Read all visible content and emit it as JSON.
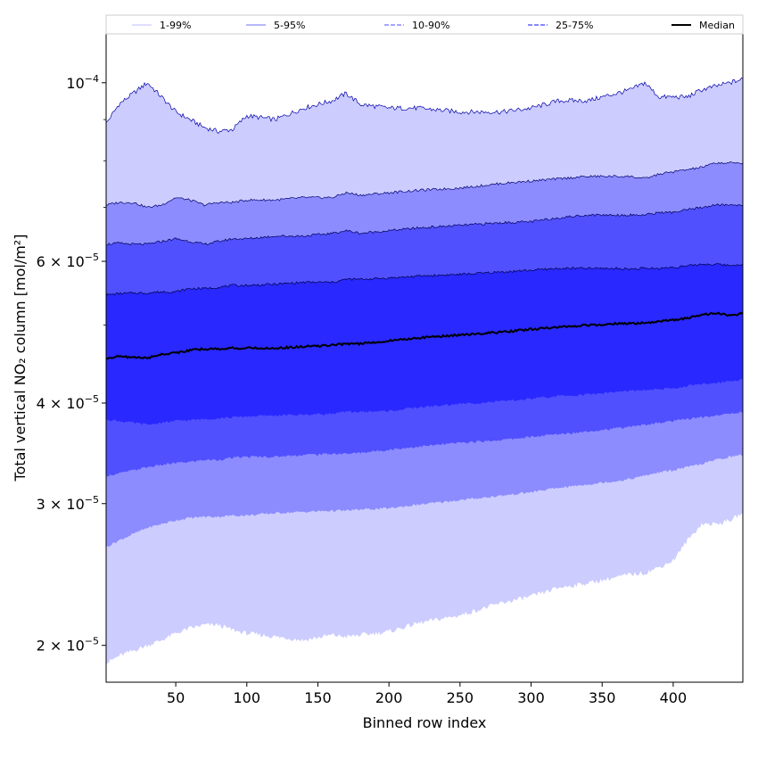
{
  "chart_data": {
    "type": "area",
    "title": "",
    "xlabel": "Binned row index",
    "ylabel": "Total vertical NO₂ column [mol/m²]",
    "yscale": "log",
    "xlim": [
      1,
      449
    ],
    "ylim": [
      1.8e-05,
      0.000115
    ],
    "x_ticks": [
      50,
      100,
      150,
      200,
      250,
      300,
      350,
      400
    ],
    "x_tick_labels": [
      "50",
      "100",
      "150",
      "200",
      "250",
      "300",
      "350",
      "400"
    ],
    "y_ticks": [
      {
        "value": 2e-05,
        "mantissa": "2",
        "exponent": "−5"
      },
      {
        "value": 3e-05,
        "mantissa": "3",
        "exponent": "−5"
      },
      {
        "value": 4e-05,
        "mantissa": "4",
        "exponent": "−5"
      },
      {
        "value": 6e-05,
        "mantissa": "6",
        "exponent": "−5"
      },
      {
        "value": 0.0001,
        "mantissa": "10",
        "exponent": "−4"
      }
    ],
    "grid": false,
    "legend_placement": "top",
    "x": [
      1,
      10,
      20,
      30,
      40,
      50,
      60,
      70,
      80,
      90,
      100,
      120,
      140,
      160,
      170,
      180,
      200,
      220,
      250,
      280,
      300,
      320,
      340,
      360,
      370,
      380,
      390,
      400,
      410,
      420,
      430,
      440,
      449
    ],
    "bands": [
      {
        "name": "1-99%",
        "color": "#ccccff",
        "line_color": "#0000aa",
        "lower": [
          1.9e-05,
          1.94e-05,
          1.97e-05,
          2e-05,
          2.03e-05,
          2.07e-05,
          2.1e-05,
          2.12e-05,
          2.12e-05,
          2.09e-05,
          2.07e-05,
          2.05e-05,
          2.03e-05,
          2.06e-05,
          2.05e-05,
          2.06e-05,
          2.08e-05,
          2.13e-05,
          2.18e-05,
          2.26e-05,
          2.3e-05,
          2.36e-05,
          2.39e-05,
          2.43e-05,
          2.45e-05,
          2.46e-05,
          2.5e-05,
          2.55e-05,
          2.7e-05,
          2.83e-05,
          2.83e-05,
          2.86e-05,
          2.92e-05
        ],
        "upper": [
          8.9e-05,
          9.4e-05,
          9.7e-05,
          0.0001,
          9.6e-05,
          9.2e-05,
          9e-05,
          8.8e-05,
          8.7e-05,
          8.75e-05,
          9.1e-05,
          9e-05,
          9.3e-05,
          9.5e-05,
          9.7e-05,
          9.4e-05,
          9.3e-05,
          9.3e-05,
          9.2e-05,
          9.2e-05,
          9.3e-05,
          9.5e-05,
          9.5e-05,
          9.7e-05,
          9.8e-05,
          0.0001,
          9.6e-05,
          9.6e-05,
          9.6e-05,
          9.8e-05,
          9.9e-05,
          0.0001,
          0.000101
        ]
      },
      {
        "name": "5-95%",
        "color": "#8c8cff",
        "line_color": "#00006e",
        "lower": [
          2.65e-05,
          2.7e-05,
          2.75e-05,
          2.8e-05,
          2.83e-05,
          2.86e-05,
          2.88e-05,
          2.89e-05,
          2.89e-05,
          2.9e-05,
          2.9e-05,
          2.92e-05,
          2.93e-05,
          2.94e-05,
          2.94e-05,
          2.95e-05,
          2.96e-05,
          2.99e-05,
          3.03e-05,
          3.07e-05,
          3.1e-05,
          3.14e-05,
          3.17e-05,
          3.2e-05,
          3.22e-05,
          3.25e-05,
          3.28e-05,
          3.3e-05,
          3.33e-05,
          3.36e-05,
          3.4e-05,
          3.43e-05,
          3.45e-05
        ],
        "upper": [
          7.05e-05,
          7.1e-05,
          7.1e-05,
          7e-05,
          7.05e-05,
          7.2e-05,
          7.15e-05,
          7.05e-05,
          7.1e-05,
          7.1e-05,
          7.15e-05,
          7.15e-05,
          7.2e-05,
          7.2e-05,
          7.3e-05,
          7.25e-05,
          7.3e-05,
          7.35e-05,
          7.4e-05,
          7.5e-05,
          7.55e-05,
          7.6e-05,
          7.65e-05,
          7.65e-05,
          7.65e-05,
          7.6e-05,
          7.7e-05,
          7.75e-05,
          7.8e-05,
          7.85e-05,
          7.95e-05,
          7.95e-05,
          7.95e-05
        ]
      },
      {
        "name": "10-90%",
        "color": "#5050ff",
        "line_color": "#000055",
        "lower": [
          3.25e-05,
          3.27e-05,
          3.3e-05,
          3.33e-05,
          3.35e-05,
          3.37e-05,
          3.38e-05,
          3.4e-05,
          3.4e-05,
          3.42e-05,
          3.43e-05,
          3.43e-05,
          3.45e-05,
          3.46e-05,
          3.46e-05,
          3.47e-05,
          3.5e-05,
          3.53e-05,
          3.57e-05,
          3.6e-05,
          3.63e-05,
          3.66e-05,
          3.69e-05,
          3.72e-05,
          3.74e-05,
          3.76e-05,
          3.78e-05,
          3.8e-05,
          3.82e-05,
          3.84e-05,
          3.86e-05,
          3.88e-05,
          3.9e-05
        ],
        "upper": [
          6.3e-05,
          6.32e-05,
          6.3e-05,
          6.3e-05,
          6.35e-05,
          6.4e-05,
          6.35e-05,
          6.3e-05,
          6.35e-05,
          6.4e-05,
          6.4e-05,
          6.45e-05,
          6.45e-05,
          6.5e-05,
          6.55e-05,
          6.5e-05,
          6.55e-05,
          6.6e-05,
          6.65e-05,
          6.7e-05,
          6.72e-05,
          6.8e-05,
          6.85e-05,
          6.85e-05,
          6.85e-05,
          6.85e-05,
          6.9e-05,
          6.9e-05,
          6.95e-05,
          7e-05,
          7.05e-05,
          7.05e-05,
          7.05e-05
        ]
      },
      {
        "name": "25-75%",
        "color": "#2828ff",
        "line_color": "#000044",
        "lower": [
          3.82e-05,
          3.8e-05,
          3.78e-05,
          3.76e-05,
          3.78e-05,
          3.8e-05,
          3.81e-05,
          3.82e-05,
          3.83e-05,
          3.84e-05,
          3.85e-05,
          3.86e-05,
          3.87e-05,
          3.88e-05,
          3.9e-05,
          3.9e-05,
          3.91e-05,
          3.95e-05,
          3.99e-05,
          4.02e-05,
          4.05e-05,
          4.08e-05,
          4.1e-05,
          4.13e-05,
          4.14e-05,
          4.15e-05,
          4.16e-05,
          4.17e-05,
          4.2e-05,
          4.22e-05,
          4.24e-05,
          4.26e-05,
          4.28e-05
        ],
        "upper": [
          5.45e-05,
          5.47e-05,
          5.48e-05,
          5.48e-05,
          5.5e-05,
          5.5e-05,
          5.55e-05,
          5.55e-05,
          5.57e-05,
          5.6e-05,
          5.6e-05,
          5.62e-05,
          5.65e-05,
          5.65e-05,
          5.7e-05,
          5.7e-05,
          5.72e-05,
          5.75e-05,
          5.78e-05,
          5.82e-05,
          5.85e-05,
          5.88e-05,
          5.88e-05,
          5.88e-05,
          5.87e-05,
          5.88e-05,
          5.88e-05,
          5.9e-05,
          5.92e-05,
          5.95e-05,
          5.95e-05,
          5.93e-05,
          5.95e-05
        ]
      }
    ],
    "median": {
      "name": "Median",
      "color": "#000000",
      "values": [
        4.55e-05,
        4.57e-05,
        4.56e-05,
        4.55e-05,
        4.6e-05,
        4.62e-05,
        4.65e-05,
        4.67e-05,
        4.67e-05,
        4.68e-05,
        4.68e-05,
        4.68e-05,
        4.7e-05,
        4.72e-05,
        4.74e-05,
        4.74e-05,
        4.78e-05,
        4.82e-05,
        4.86e-05,
        4.9e-05,
        4.94e-05,
        4.97e-05,
        5e-05,
        5.02e-05,
        5.02e-05,
        5.03e-05,
        5.05e-05,
        5.07e-05,
        5.1e-05,
        5.15e-05,
        5.17e-05,
        5.14e-05,
        5.17e-05
      ]
    },
    "legend": [
      {
        "label": "1-99%",
        "color": "#ccccff",
        "style": "solid"
      },
      {
        "label": "5-95%",
        "color": "#8c8cff",
        "style": "solid"
      },
      {
        "label": "10-90%",
        "color": "#7070ff",
        "style": "dashed"
      },
      {
        "label": "25-75%",
        "color": "#4040ff",
        "style": "dashed"
      },
      {
        "label": "Median",
        "color": "#000000",
        "style": "solid"
      }
    ]
  }
}
